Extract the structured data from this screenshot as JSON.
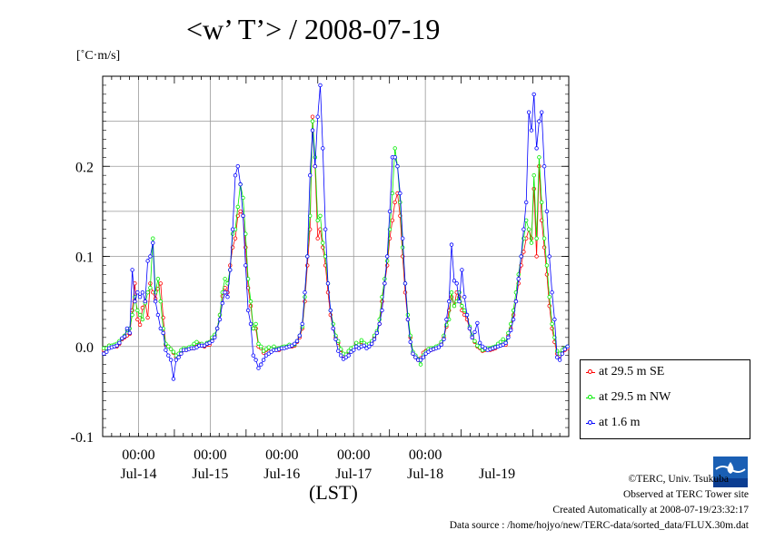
{
  "title": "<w’ T’> / 2008-07-19",
  "unit_label": "[˚C·m/s]",
  "footer": {
    "copyright": "©TERC, Univ. Tsukuba",
    "observed": "Observed at TERC Tower site",
    "created": "Created Automatically at 2008-07-19/23:32:17",
    "source": "Data source : /home/hojyo/new/TERC-data/sorted_data/FLUX.30m.dat"
  },
  "chart_data": {
    "type": "line",
    "title": "<w’ T’> / 2008-07-19",
    "xlabel": "(LST)",
    "ylabel": "[˚C·m/s]",
    "ylim": [
      -0.1,
      0.3
    ],
    "y_ticks": [
      "-0.1",
      "0.0",
      "0.1",
      "0.2"
    ],
    "x_start": "2008-07-13 12:00",
    "x_end": "2008-07-19 24:00",
    "x_time_ticks": [
      "00:00",
      "00:00",
      "00:00",
      "00:00",
      "00:00"
    ],
    "x_date_ticks": [
      "Jul-14",
      "Jul-15",
      "Jul-16",
      "Jul-17",
      "Jul-18",
      "Jul-19"
    ],
    "grid": true,
    "legend_position": "outside-bottom-right",
    "series": [
      {
        "name": "at 29.5 m SE",
        "color": "#ff0000",
        "values": [
          -0.004,
          -0.003,
          0.001,
          0.0,
          0.001,
          0.0,
          0.003,
          0.008,
          0.01,
          0.012,
          0.014,
          0.04,
          0.07,
          0.03,
          0.024,
          0.043,
          0.05,
          0.032,
          0.07,
          0.06,
          0.053,
          0.064,
          0.07,
          0.032,
          0.002,
          0.0,
          -0.003,
          -0.007,
          -0.012,
          -0.01,
          -0.006,
          -0.003,
          -0.004,
          -0.002,
          -0.002,
          -0.002,
          0.0,
          0.003,
          0.001,
          0.0,
          0.002,
          0.002,
          0.008,
          0.012,
          0.02,
          0.035,
          0.056,
          0.065,
          0.06,
          0.09,
          0.11,
          0.12,
          0.145,
          0.15,
          0.145,
          0.11,
          0.065,
          0.045,
          0.02,
          0.02,
          0.0,
          -0.002,
          -0.007,
          -0.004,
          -0.002,
          -0.004,
          -0.001,
          -0.004,
          -0.004,
          -0.002,
          -0.001,
          -0.001,
          0.001,
          0.0,
          0.001,
          0.005,
          0.01,
          0.02,
          0.05,
          0.09,
          0.13,
          0.255,
          0.2,
          0.12,
          0.13,
          0.11,
          0.09,
          0.06,
          0.035,
          0.02,
          0.01,
          0.004,
          -0.004,
          -0.01,
          -0.01,
          -0.006,
          -0.003,
          -0.002,
          0.003,
          0.0,
          0.005,
          0.003,
          0.0,
          0.002,
          0.005,
          0.01,
          0.015,
          0.025,
          0.05,
          0.07,
          0.09,
          0.12,
          0.14,
          0.16,
          0.17,
          0.145,
          0.1,
          0.06,
          0.03,
          0.01,
          -0.008,
          -0.012,
          -0.015,
          -0.013,
          -0.007,
          -0.005,
          -0.005,
          -0.004,
          -0.003,
          -0.001,
          0.0,
          0.004,
          0.01,
          0.022,
          0.04,
          0.055,
          0.045,
          0.06,
          0.055,
          0.04,
          0.035,
          0.03,
          0.02,
          0.01,
          0.005,
          0.0,
          -0.002,
          -0.005,
          -0.004,
          -0.003,
          -0.004,
          -0.003,
          -0.002,
          0.001,
          0.003,
          0.005,
          0.002,
          0.012,
          0.02,
          0.035,
          0.05,
          0.07,
          0.09,
          0.105,
          0.12,
          0.13,
          0.12,
          0.175,
          0.1,
          0.2,
          0.14,
          0.11,
          0.08,
          0.045,
          0.02,
          0.005,
          -0.008,
          -0.01,
          -0.006,
          -0.004,
          -0.002
        ],
        "_comment": ""
      },
      {
        "name": "at 29.5 m NW",
        "color": "#00ee00",
        "values": [
          -0.002,
          -0.002,
          0.001,
          0.001,
          0.002,
          0.003,
          0.006,
          0.009,
          0.012,
          0.018,
          0.02,
          0.035,
          0.055,
          0.04,
          0.035,
          0.03,
          0.048,
          0.06,
          0.065,
          0.12,
          0.06,
          0.075,
          0.05,
          0.02,
          0.003,
          0.0,
          -0.003,
          -0.006,
          -0.01,
          -0.008,
          -0.004,
          -0.002,
          -0.003,
          -0.001,
          0.0,
          0.003,
          0.005,
          0.002,
          0.003,
          0.001,
          0.004,
          0.005,
          0.01,
          0.013,
          0.02,
          0.035,
          0.06,
          0.075,
          0.07,
          0.085,
          0.125,
          0.13,
          0.155,
          0.18,
          0.165,
          0.125,
          0.075,
          0.05,
          0.02,
          0.025,
          0.003,
          0.0,
          -0.005,
          -0.003,
          -0.001,
          -0.003,
          0.0,
          -0.003,
          -0.002,
          -0.001,
          0.0,
          0.0,
          0.002,
          0.001,
          0.002,
          0.006,
          0.012,
          0.022,
          0.055,
          0.1,
          0.145,
          0.25,
          0.21,
          0.14,
          0.145,
          0.115,
          0.1,
          0.07,
          0.04,
          0.025,
          0.012,
          0.006,
          -0.003,
          -0.008,
          -0.009,
          -0.005,
          -0.002,
          -0.001,
          0.004,
          0.002,
          0.007,
          0.004,
          0.002,
          0.003,
          0.006,
          0.012,
          0.017,
          0.03,
          0.055,
          0.075,
          0.095,
          0.13,
          0.17,
          0.22,
          0.2,
          0.16,
          0.11,
          0.07,
          0.035,
          0.012,
          -0.006,
          -0.01,
          -0.014,
          -0.02,
          -0.01,
          -0.006,
          -0.003,
          -0.002,
          -0.002,
          0.0,
          0.001,
          0.005,
          0.012,
          0.024,
          0.03,
          0.06,
          0.045,
          0.05,
          0.06,
          0.045,
          0.04,
          0.035,
          0.022,
          0.012,
          0.006,
          0.001,
          -0.001,
          -0.004,
          -0.003,
          -0.002,
          -0.002,
          -0.001,
          0.0,
          0.003,
          0.005,
          0.008,
          0.005,
          0.015,
          0.025,
          0.04,
          0.06,
          0.08,
          0.1,
          0.12,
          0.14,
          0.13,
          0.115,
          0.19,
          0.12,
          0.21,
          0.16,
          0.12,
          0.09,
          0.055,
          0.025,
          0.01,
          -0.005,
          -0.008,
          -0.004,
          -0.002,
          0.0
        ]
      },
      {
        "name": "at 1.6 m",
        "color": "#0000ff",
        "values": [
          -0.008,
          -0.006,
          -0.002,
          -0.001,
          0.0,
          0.001,
          0.004,
          0.009,
          0.011,
          0.02,
          0.015,
          0.085,
          0.05,
          0.06,
          0.055,
          0.06,
          0.05,
          0.095,
          0.1,
          0.115,
          0.05,
          0.035,
          0.02,
          0.015,
          -0.004,
          -0.01,
          -0.015,
          -0.036,
          -0.015,
          -0.012,
          -0.008,
          -0.004,
          -0.004,
          -0.003,
          -0.002,
          -0.002,
          -0.001,
          0.001,
          0.001,
          0.001,
          0.003,
          0.004,
          0.006,
          0.01,
          0.02,
          0.03,
          0.048,
          0.06,
          0.055,
          0.085,
          0.13,
          0.19,
          0.2,
          0.18,
          0.145,
          0.09,
          0.04,
          0.025,
          -0.01,
          -0.015,
          -0.024,
          -0.02,
          -0.015,
          -0.01,
          -0.008,
          -0.006,
          -0.004,
          -0.004,
          -0.003,
          -0.002,
          -0.002,
          -0.001,
          0.0,
          0.001,
          0.003,
          0.006,
          0.012,
          0.025,
          0.06,
          0.1,
          0.19,
          0.24,
          0.2,
          0.255,
          0.29,
          0.22,
          0.13,
          0.07,
          0.04,
          0.02,
          0.008,
          -0.005,
          -0.01,
          -0.014,
          -0.012,
          -0.01,
          -0.006,
          -0.004,
          0.0,
          -0.002,
          0.0,
          0.001,
          -0.002,
          0.0,
          0.003,
          0.008,
          0.015,
          0.025,
          0.04,
          0.07,
          0.1,
          0.15,
          0.21,
          0.21,
          0.2,
          0.17,
          0.12,
          0.07,
          0.03,
          0.005,
          -0.008,
          -0.012,
          -0.015,
          -0.015,
          -0.012,
          -0.008,
          -0.006,
          -0.004,
          -0.003,
          -0.002,
          -0.001,
          0.002,
          0.008,
          0.03,
          0.05,
          0.113,
          0.073,
          0.07,
          0.05,
          0.085,
          0.055,
          0.035,
          0.02,
          0.01,
          0.016,
          0.026,
          0.004,
          0.0,
          -0.002,
          -0.004,
          -0.003,
          -0.002,
          -0.001,
          0.0,
          0.001,
          0.002,
          0.004,
          0.01,
          0.018,
          0.03,
          0.05,
          0.075,
          0.1,
          0.13,
          0.16,
          0.26,
          0.24,
          0.28,
          0.22,
          0.25,
          0.26,
          0.2,
          0.15,
          0.1,
          0.06,
          0.03,
          -0.012,
          -0.015,
          -0.008,
          -0.003,
          0.0
        ]
      }
    ]
  }
}
